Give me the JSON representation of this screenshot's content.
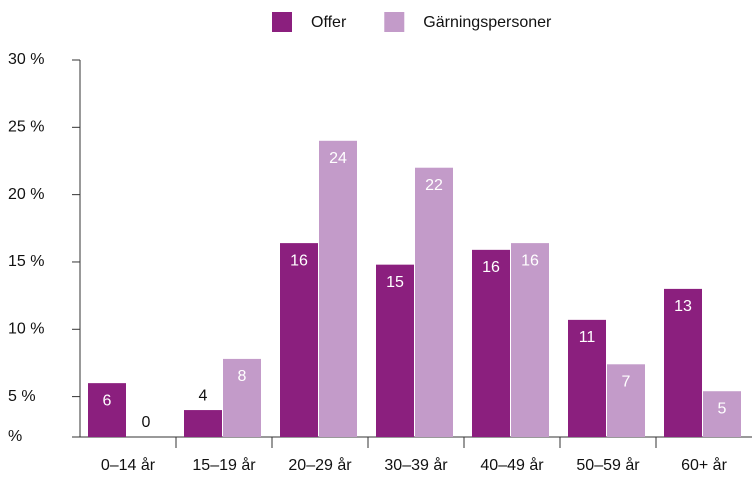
{
  "chart_data": {
    "type": "bar",
    "categories": [
      "0–14 år",
      "15–19 år",
      "20–29 år",
      "30–39 år",
      "40–49 år",
      "50–59 år",
      "60+ år"
    ],
    "series": [
      {
        "name": "Offer",
        "color": "#8b1f7e",
        "values": [
          6.0,
          4.0,
          16.4,
          14.8,
          15.9,
          10.7,
          13.0
        ],
        "value_labels": [
          6,
          4,
          16,
          15,
          16,
          11,
          13
        ]
      },
      {
        "name": "Gärningspersoner",
        "color": "#c39bc9",
        "values": [
          0,
          7.8,
          24.0,
          22.0,
          16.4,
          7.4,
          5.4
        ],
        "value_labels": [
          0,
          8,
          24,
          22,
          16,
          7,
          5
        ]
      }
    ],
    "ylim": [
      2,
      30
    ],
    "yticks": [
      {
        "value": 2,
        "label": "%"
      },
      {
        "value": 5,
        "label": "5 %"
      },
      {
        "value": 10,
        "label": "10 %"
      },
      {
        "value": 15,
        "label": "15 %"
      },
      {
        "value": 20,
        "label": "20 %"
      },
      {
        "value": 25,
        "label": "25 %"
      },
      {
        "value": 30,
        "label": "30 %"
      }
    ],
    "legend": "top"
  }
}
